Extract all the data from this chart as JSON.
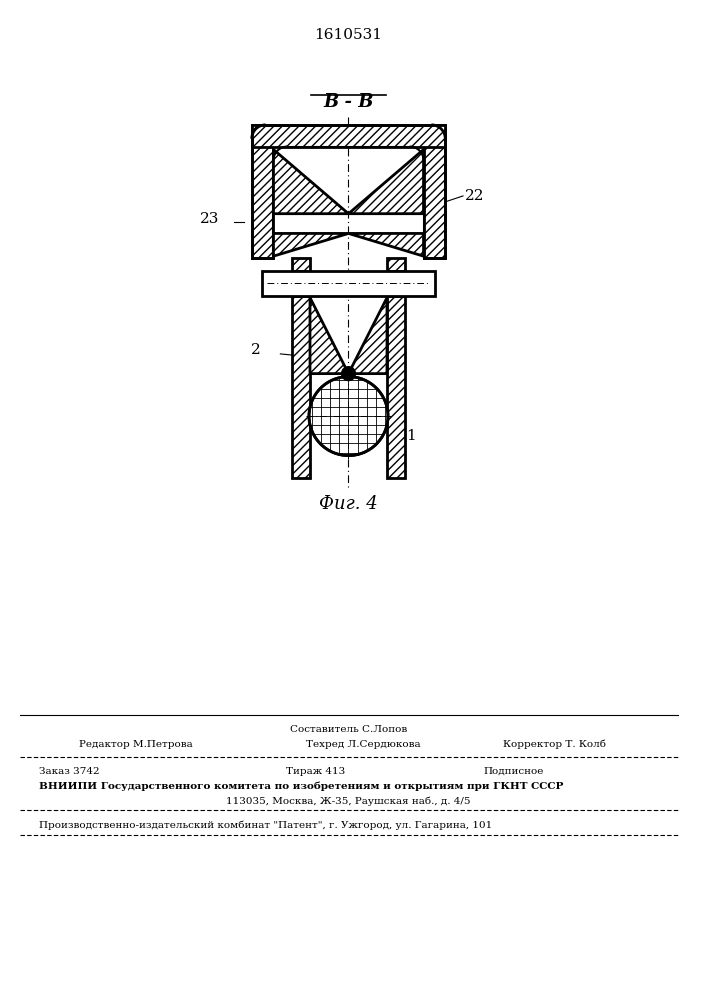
{
  "patent_number": "1610531",
  "section_label": "B - B",
  "fig_label": "Фиг. 4",
  "footer_line0": "Составитель С.Лопов",
  "footer_line1a": "Редактор М.Петрова",
  "footer_line1b": "Техред Л.Сердюкова",
  "footer_line1c": "Корректор Т. Колб",
  "footer_line2a": "Заказ 3742",
  "footer_line2b": "Тираж 413",
  "footer_line2c": "Подписное",
  "footer_line3": "ВНИИПИ Государственного комитета по изобретениям и открытиям при ГКНТ СССР",
  "footer_line4": "113035, Москва, Ж-35, Раушская наб., д. 4/5",
  "footer_line5": "Производственно-издательский комбинат \"Патент\", г. Ужгород, ул. Гагарина, 101",
  "line_color": "#000000",
  "bg_color": "#ffffff"
}
